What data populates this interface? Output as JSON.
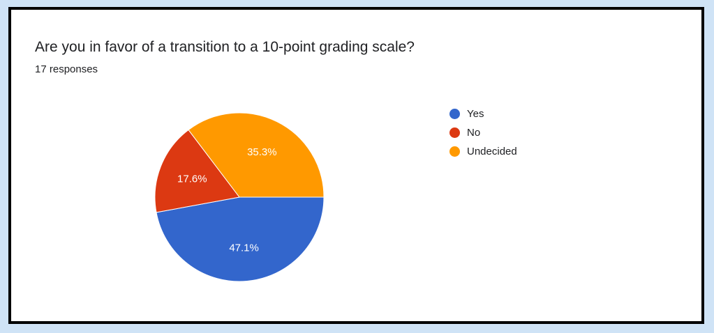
{
  "chart_data": {
    "type": "pie",
    "title": "Are you in favor of a transition to a 10-point grading scale?",
    "subtitle": "17 responses",
    "slices": [
      {
        "name": "Yes",
        "value": 47.1,
        "label": "47.1%",
        "color": "#3366cc"
      },
      {
        "name": "No",
        "value": 17.6,
        "label": "17.6%",
        "color": "#dc3912"
      },
      {
        "name": "Undecided",
        "value": 35.3,
        "label": "35.3%",
        "color": "#ff9900"
      }
    ],
    "legend_position": "right"
  }
}
